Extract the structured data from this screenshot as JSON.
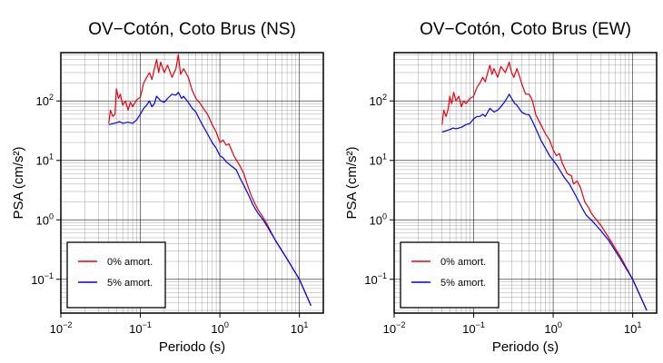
{
  "colors": {
    "series_0": "#e8000b",
    "series_5": "#0000e6",
    "grid": "#000000"
  },
  "chart_data": [
    {
      "type": "line",
      "title": "OV−Cotón, Coto Brus (NS)",
      "xlabel": "Periodo (s)",
      "ylabel": "PSA (cm/s²)",
      "x_scale": "log",
      "y_scale": "log",
      "xlim": [
        0.01,
        20
      ],
      "ylim": [
        0.027,
        650
      ],
      "grid": true,
      "legend_position": "bottom-left",
      "x_ticks": [
        {
          "base": "10",
          "exp": "−2",
          "value": 0.01
        },
        {
          "base": "10",
          "exp": "−1",
          "value": 0.1
        },
        {
          "base": "10",
          "exp": "0",
          "value": 1
        },
        {
          "base": "10",
          "exp": "1",
          "value": 10
        }
      ],
      "y_ticks": [
        {
          "base": "10",
          "exp": "−1",
          "value": 0.1
        },
        {
          "base": "10",
          "exp": "0",
          "value": 1
        },
        {
          "base": "10",
          "exp": "1",
          "value": 10
        },
        {
          "base": "10",
          "exp": "2",
          "value": 100
        }
      ],
      "series": [
        {
          "name": "0% amort.",
          "color": "#e8000b",
          "points": [
            [
              0.04,
              42
            ],
            [
              0.042,
              70
            ],
            [
              0.045,
              55
            ],
            [
              0.048,
              60
            ],
            [
              0.05,
              160
            ],
            [
              0.053,
              110
            ],
            [
              0.056,
              130
            ],
            [
              0.06,
              85
            ],
            [
              0.065,
              100
            ],
            [
              0.07,
              70
            ],
            [
              0.075,
              95
            ],
            [
              0.08,
              80
            ],
            [
              0.09,
              105
            ],
            [
              0.1,
              115
            ],
            [
              0.11,
              200
            ],
            [
              0.12,
              250
            ],
            [
              0.13,
              300
            ],
            [
              0.14,
              230
            ],
            [
              0.15,
              350
            ],
            [
              0.16,
              500
            ],
            [
              0.17,
              300
            ],
            [
              0.18,
              450
            ],
            [
              0.2,
              300
            ],
            [
              0.22,
              400
            ],
            [
              0.25,
              250
            ],
            [
              0.28,
              350
            ],
            [
              0.3,
              600
            ],
            [
              0.32,
              280
            ],
            [
              0.35,
              350
            ],
            [
              0.4,
              250
            ],
            [
              0.45,
              150
            ],
            [
              0.5,
              110
            ],
            [
              0.55,
              95
            ],
            [
              0.6,
              80
            ],
            [
              0.7,
              60
            ],
            [
              0.8,
              40
            ],
            [
              0.9,
              30
            ],
            [
              1.0,
              20
            ],
            [
              1.1,
              22
            ],
            [
              1.2,
              18
            ],
            [
              1.3,
              19
            ],
            [
              1.5,
              12
            ],
            [
              1.7,
              9
            ],
            [
              1.8,
              8
            ],
            [
              2.0,
              6
            ],
            [
              2.2,
              4
            ],
            [
              2.5,
              2.5
            ],
            [
              2.8,
              1.8
            ],
            [
              3.0,
              1.5
            ],
            [
              3.5,
              1.1
            ],
            [
              4.0,
              0.8
            ],
            [
              5.0,
              0.45
            ],
            [
              7.0,
              0.22
            ],
            [
              10.0,
              0.1
            ],
            [
              14.0,
              0.036
            ]
          ]
        },
        {
          "name": "5% amort.",
          "color": "#0000e6",
          "points": [
            [
              0.04,
              40
            ],
            [
              0.05,
              43
            ],
            [
              0.055,
              45
            ],
            [
              0.06,
              42
            ],
            [
              0.07,
              44
            ],
            [
              0.08,
              42
            ],
            [
              0.09,
              48
            ],
            [
              0.1,
              60
            ],
            [
              0.11,
              75
            ],
            [
              0.12,
              85
            ],
            [
              0.13,
              100
            ],
            [
              0.14,
              80
            ],
            [
              0.15,
              90
            ],
            [
              0.16,
              120
            ],
            [
              0.17,
              110
            ],
            [
              0.18,
              100
            ],
            [
              0.2,
              95
            ],
            [
              0.22,
              110
            ],
            [
              0.25,
              130
            ],
            [
              0.28,
              125
            ],
            [
              0.3,
              140
            ],
            [
              0.33,
              110
            ],
            [
              0.35,
              120
            ],
            [
              0.4,
              95
            ],
            [
              0.45,
              75
            ],
            [
              0.5,
              65
            ],
            [
              0.55,
              50
            ],
            [
              0.6,
              40
            ],
            [
              0.7,
              28
            ],
            [
              0.8,
              20
            ],
            [
              0.9,
              16
            ],
            [
              1.0,
              12
            ],
            [
              1.1,
              11
            ],
            [
              1.2,
              9.5
            ],
            [
              1.4,
              8
            ],
            [
              1.6,
              7
            ],
            [
              1.8,
              5
            ],
            [
              2.0,
              3.8
            ],
            [
              2.3,
              2.6
            ],
            [
              2.6,
              1.8
            ],
            [
              3.0,
              1.3
            ],
            [
              3.5,
              1.0
            ],
            [
              4.0,
              0.75
            ],
            [
              5.0,
              0.45
            ],
            [
              7.0,
              0.22
            ],
            [
              10.0,
              0.1
            ],
            [
              14.0,
              0.036
            ]
          ]
        }
      ]
    },
    {
      "type": "line",
      "title": "OV−Cotón, Coto Brus (EW)",
      "xlabel": "Periodo (s)",
      "ylabel": "PSA (cm/s²)",
      "x_scale": "log",
      "y_scale": "log",
      "xlim": [
        0.01,
        20
      ],
      "ylim": [
        0.027,
        650
      ],
      "grid": true,
      "legend_position": "bottom-left",
      "x_ticks": [
        {
          "base": "10",
          "exp": "−2",
          "value": 0.01
        },
        {
          "base": "10",
          "exp": "−1",
          "value": 0.1
        },
        {
          "base": "10",
          "exp": "0",
          "value": 1
        },
        {
          "base": "10",
          "exp": "1",
          "value": 10
        }
      ],
      "y_ticks": [
        {
          "base": "10",
          "exp": "−1",
          "value": 0.1
        },
        {
          "base": "10",
          "exp": "0",
          "value": 1
        },
        {
          "base": "10",
          "exp": "1",
          "value": 10
        },
        {
          "base": "10",
          "exp": "2",
          "value": 100
        }
      ],
      "series": [
        {
          "name": "0% amort.",
          "color": "#e8000b",
          "points": [
            [
              0.04,
              40
            ],
            [
              0.042,
              70
            ],
            [
              0.045,
              55
            ],
            [
              0.048,
              75
            ],
            [
              0.05,
              120
            ],
            [
              0.053,
              90
            ],
            [
              0.056,
              140
            ],
            [
              0.06,
              100
            ],
            [
              0.065,
              120
            ],
            [
              0.07,
              80
            ],
            [
              0.075,
              100
            ],
            [
              0.08,
              90
            ],
            [
              0.09,
              110
            ],
            [
              0.1,
              120
            ],
            [
              0.11,
              170
            ],
            [
              0.12,
              200
            ],
            [
              0.13,
              250
            ],
            [
              0.14,
              210
            ],
            [
              0.15,
              300
            ],
            [
              0.16,
              400
            ],
            [
              0.17,
              280
            ],
            [
              0.18,
              350
            ],
            [
              0.2,
              250
            ],
            [
              0.22,
              380
            ],
            [
              0.25,
              300
            ],
            [
              0.28,
              450
            ],
            [
              0.3,
              300
            ],
            [
              0.32,
              250
            ],
            [
              0.35,
              350
            ],
            [
              0.4,
              200
            ],
            [
              0.45,
              130
            ],
            [
              0.5,
              130
            ],
            [
              0.55,
              100
            ],
            [
              0.6,
              60
            ],
            [
              0.7,
              40
            ],
            [
              0.8,
              28
            ],
            [
              0.9,
              22
            ],
            [
              1.0,
              15
            ],
            [
              1.1,
              12
            ],
            [
              1.2,
              13
            ],
            [
              1.3,
              9
            ],
            [
              1.5,
              6
            ],
            [
              1.7,
              5.5
            ],
            [
              1.8,
              4
            ],
            [
              2.0,
              4.5
            ],
            [
              2.2,
              3.5
            ],
            [
              2.5,
              2.0
            ],
            [
              2.8,
              1.6
            ],
            [
              3.0,
              1.3
            ],
            [
              3.5,
              1.0
            ],
            [
              4.0,
              0.8
            ],
            [
              5.0,
              0.5
            ],
            [
              7.0,
              0.24
            ],
            [
              10.0,
              0.1
            ],
            [
              15.0,
              0.03
            ]
          ]
        },
        {
          "name": "5% amort.",
          "color": "#0000e6",
          "points": [
            [
              0.04,
              30
            ],
            [
              0.05,
              33
            ],
            [
              0.055,
              35
            ],
            [
              0.06,
              34
            ],
            [
              0.07,
              36
            ],
            [
              0.08,
              40
            ],
            [
              0.09,
              42
            ],
            [
              0.1,
              50
            ],
            [
              0.11,
              55
            ],
            [
              0.12,
              55
            ],
            [
              0.13,
              60
            ],
            [
              0.14,
              55
            ],
            [
              0.15,
              65
            ],
            [
              0.16,
              75
            ],
            [
              0.17,
              70
            ],
            [
              0.18,
              65
            ],
            [
              0.2,
              70
            ],
            [
              0.22,
              80
            ],
            [
              0.25,
              100
            ],
            [
              0.28,
              130
            ],
            [
              0.3,
              110
            ],
            [
              0.33,
              90
            ],
            [
              0.35,
              85
            ],
            [
              0.4,
              65
            ],
            [
              0.45,
              60
            ],
            [
              0.5,
              58
            ],
            [
              0.55,
              45
            ],
            [
              0.6,
              35
            ],
            [
              0.7,
              22
            ],
            [
              0.8,
              16
            ],
            [
              0.9,
              12
            ],
            [
              1.0,
              10
            ],
            [
              1.1,
              8.5
            ],
            [
              1.2,
              7
            ],
            [
              1.4,
              5
            ],
            [
              1.6,
              4
            ],
            [
              1.8,
              3
            ],
            [
              2.0,
              2.3
            ],
            [
              2.3,
              1.6
            ],
            [
              2.6,
              1.2
            ],
            [
              3.0,
              1.0
            ],
            [
              3.5,
              0.8
            ],
            [
              4.0,
              0.65
            ],
            [
              5.0,
              0.45
            ],
            [
              7.0,
              0.22
            ],
            [
              10.0,
              0.1
            ],
            [
              15.0,
              0.03
            ]
          ]
        }
      ]
    }
  ]
}
